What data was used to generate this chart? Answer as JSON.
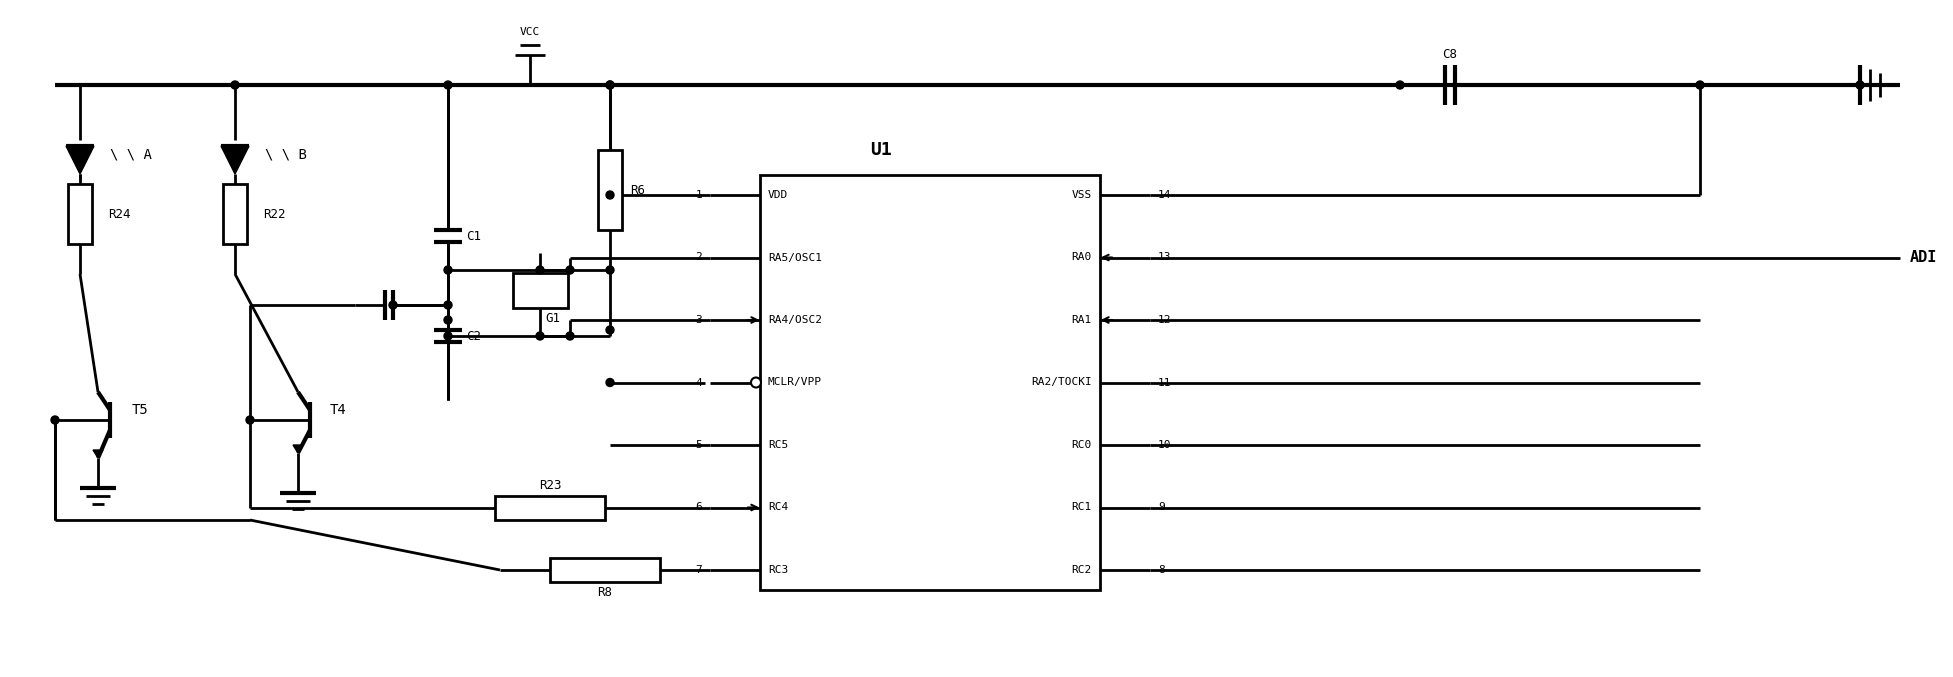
{
  "bg_color": "#ffffff",
  "line_color": "#000000",
  "figsize": [
    19.53,
    6.77
  ],
  "dpi": 100,
  "ic_left_pins": [
    "VDD",
    "RA5/OSC1",
    "RA4/OSC2",
    "MCLR/VPP",
    "RC5",
    "RC4",
    "RC3"
  ],
  "ic_left_nums": [
    "1",
    "2",
    "3",
    "4",
    "5",
    "6",
    "7"
  ],
  "ic_right_pins": [
    "VSS",
    "RA0",
    "RA1",
    "RA2/TOCKI",
    "RC0",
    "RC1",
    "RC2"
  ],
  "ic_right_nums": [
    "14",
    "13",
    "12",
    "11",
    "10",
    "9",
    "8"
  ]
}
